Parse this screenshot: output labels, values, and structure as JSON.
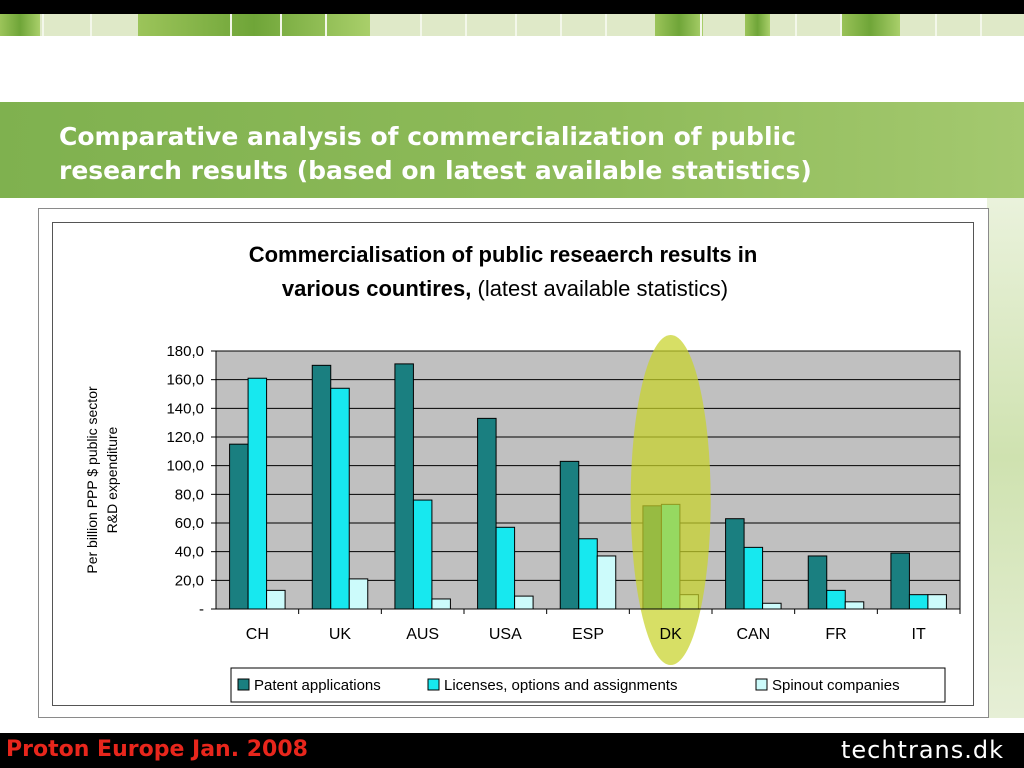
{
  "slide": {
    "title_line1": "Comparative analysis of commercialization of public",
    "title_line2": "research results (based on latest available statistics)",
    "footer_left": "Proton Europe Jan. 2008",
    "footer_right": "techtrans.dk"
  },
  "colors": {
    "banner": "#8fbb5a",
    "patent": "#1a7f80",
    "licenses": "#17e8ef",
    "spinout": "#ccfbfb",
    "plot_bg": "#c0c0c0",
    "highlight": "#c8d22a"
  },
  "chart_data": {
    "type": "bar",
    "title_bold": "Commercialisation of public reseaerch results in",
    "title_bold2": "various countires,",
    "title_normal": " (latest available statistics)",
    "ylabel_line1": "Per billion PPP $ public sector",
    "ylabel_line2": "R&D expenditure",
    "xlabel": "",
    "ylim": [
      0,
      180
    ],
    "yticks": [
      "-",
      "20,0",
      "40,0",
      "60,0",
      "80,0",
      "100,0",
      "120,0",
      "140,0",
      "160,0",
      "180,0"
    ],
    "categories": [
      "CH",
      "UK",
      "AUS",
      "USA",
      "ESP",
      "DK",
      "CAN",
      "FR",
      "IT"
    ],
    "series": [
      {
        "name": "Patent applications",
        "values": [
          115,
          170,
          171,
          133,
          103,
          72,
          63,
          37,
          39
        ]
      },
      {
        "name": "Licenses, options and assignments",
        "values": [
          161,
          154,
          76,
          57,
          49,
          73,
          43,
          13,
          10
        ]
      },
      {
        "name": "Spinout companies",
        "values": [
          13,
          21,
          7,
          9,
          37,
          10,
          4,
          5,
          10
        ]
      }
    ],
    "highlight_category": "DK",
    "grid": true,
    "legend_position": "bottom"
  }
}
